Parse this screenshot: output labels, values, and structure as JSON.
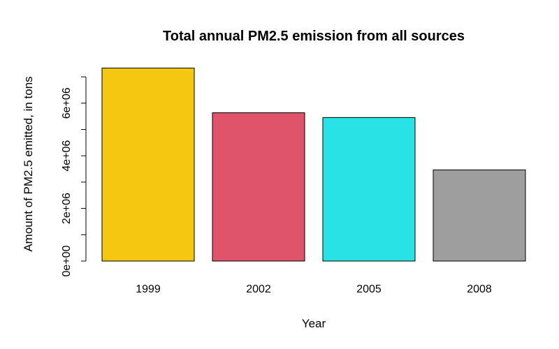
{
  "chart_data": {
    "type": "bar",
    "title": "Total annual PM2.5 emission from all sources",
    "xlabel": "Year",
    "ylabel": "Amount of PM2.5 emitted, in tons",
    "categories": [
      "1999",
      "2002",
      "2005",
      "2008"
    ],
    "values": [
      7332967,
      5635780,
      5454703,
      3464206
    ],
    "colors": [
      "#F5C710",
      "#DF536B",
      "#28E2E5",
      "#9E9E9E"
    ],
    "ylim": [
      0,
      7000000
    ],
    "yticks": [
      0,
      2000000,
      4000000,
      6000000
    ],
    "yticklabels": [
      "0e+00",
      "2e+06",
      "4e+06",
      "6e+06"
    ],
    "grid": false,
    "legend": "none"
  }
}
